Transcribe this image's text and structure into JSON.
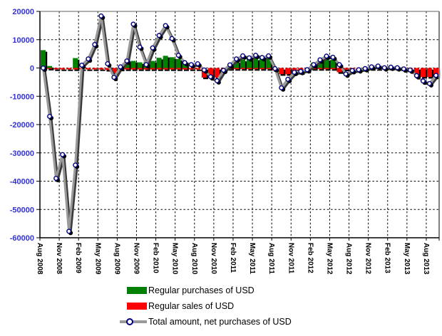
{
  "chart_data": {
    "type": "combo-bar-line",
    "title": "",
    "y_range": [
      -60000,
      20000
    ],
    "y_ticks": [
      20000,
      10000,
      0,
      -10000,
      -20000,
      -30000,
      -40000,
      -50000,
      -60000
    ],
    "y_tick_labels": [
      "20000",
      "10000",
      "0",
      "-10000",
      "-20000",
      "-30000",
      "-40000",
      "-50000",
      "-60000"
    ],
    "x_tick_labels": [
      "Aug 2008",
      "Nov 2008",
      "Feb 2009",
      "May 2009",
      "Aug 2009",
      "Nov 2009",
      "Feb 2010",
      "May 2010",
      "Aug 2010",
      "Nov 2010",
      "Feb 2011",
      "May 2011",
      "Aug 2011",
      "Nov 2011",
      "Feb 2012",
      "May 2012",
      "Aug 2012",
      "Nov 2012",
      "Feb 2013",
      "May 2013",
      "Aug 2013"
    ],
    "grid": "dashed",
    "legend_position": "bottom",
    "months": [
      "Aug 2008",
      "Sep 2008",
      "Oct 2008",
      "Nov 2008",
      "Dec 2008",
      "Jan 2009",
      "Feb 2009",
      "Mar 2009",
      "Apr 2009",
      "May 2009",
      "Jun 2009",
      "Jul 2009",
      "Aug 2009",
      "Sep 2009",
      "Oct 2009",
      "Nov 2009",
      "Dec 2009",
      "Jan 2010",
      "Feb 2010",
      "Mar 2010",
      "Apr 2010",
      "May 2010",
      "Jun 2010",
      "Jul 2010",
      "Aug 2010",
      "Sep 2010",
      "Oct 2010",
      "Nov 2010",
      "Dec 2010",
      "Jan 2011",
      "Feb 2011",
      "Mar 2011",
      "Apr 2011",
      "May 2011",
      "Jun 2011",
      "Jul 2011",
      "Aug 2011",
      "Sep 2011",
      "Oct 2011",
      "Nov 2011",
      "Dec 2011",
      "Jan 2012",
      "Feb 2012",
      "Mar 2012",
      "Apr 2012",
      "May 2012",
      "Jun 2012",
      "Jul 2012",
      "Aug 2012",
      "Sep 2012",
      "Oct 2012",
      "Nov 2012",
      "Dec 2012",
      "Jan 2013",
      "Feb 2013",
      "Mar 2013",
      "Apr 2013",
      "May 2013",
      "Jun 2013",
      "Jul 2013",
      "Aug 2013",
      "Sep 2013"
    ],
    "series": [
      {
        "name": "Regular purchases of USD",
        "type": "bar",
        "color": "#008000",
        "values": [
          6300,
          700,
          0,
          0,
          0,
          3500,
          0,
          0,
          0,
          0,
          0,
          0,
          0,
          2300,
          2500,
          2000,
          2100,
          2500,
          3600,
          4300,
          3800,
          3200,
          1500,
          0,
          0,
          0,
          0,
          0,
          0,
          1200,
          2400,
          2900,
          3100,
          3300,
          3400,
          3500,
          0,
          0,
          0,
          0,
          0,
          0,
          1900,
          2900,
          3200,
          2900,
          0,
          0,
          0,
          0,
          0,
          0,
          0,
          0,
          0,
          0,
          0,
          0,
          0,
          0,
          0,
          0
        ]
      },
      {
        "name": "Regular sales of USD",
        "type": "bar",
        "color": "#ff0000",
        "values": [
          -300,
          -300,
          -500,
          -500,
          -500,
          -500,
          -500,
          -500,
          -500,
          -500,
          -700,
          -1800,
          -600,
          -500,
          -500,
          -500,
          -500,
          -500,
          -500,
          -500,
          -500,
          -500,
          -500,
          -500,
          -500,
          -3400,
          -3400,
          -3400,
          -800,
          -400,
          -400,
          -400,
          -400,
          -400,
          -400,
          -400,
          -800,
          -2200,
          -2200,
          -1900,
          -1800,
          -1000,
          -400,
          -400,
          -400,
          -400,
          -1500,
          -600,
          -400,
          -400,
          -400,
          -400,
          -400,
          -300,
          -300,
          -400,
          -500,
          -500,
          -3100,
          -3200,
          -3200,
          -3100
        ]
      },
      {
        "name": "Total amount, net purchases of USD",
        "type": "line",
        "color": "#999999",
        "marker": "circle",
        "marker_stroke": "#000080",
        "values": [
          0,
          -17100,
          -39000,
          -30600,
          -57700,
          -34300,
          1000,
          3200,
          8300,
          18400,
          1500,
          -3300,
          400,
          2500,
          15500,
          7400,
          1200,
          7100,
          11500,
          15000,
          10400,
          4500,
          1900,
          1200,
          1500,
          -700,
          -3100,
          -4500,
          -800,
          1100,
          3200,
          4300,
          3600,
          4500,
          3700,
          4300,
          -200,
          -7000,
          -4000,
          -1500,
          -1200,
          -600,
          1200,
          2900,
          4200,
          3800,
          1200,
          -2100,
          -900,
          -600,
          -200,
          400,
          700,
          100,
          300,
          100,
          -300,
          -700,
          -2700,
          -4600,
          -5500,
          -2600
        ]
      }
    ],
    "colors": {
      "purchases": "#008000",
      "sales": "#ff0000",
      "net_line": "#999999",
      "marker_fill": "#ffffff",
      "marker_stroke": "#000080",
      "y_axis_label": "#3333cc",
      "x_axis_label": "#000000",
      "gridline": "#000000",
      "shadow": "#000000"
    }
  },
  "legend": {
    "items": [
      {
        "label": "Regular purchases of USD",
        "swatch": "green-rect"
      },
      {
        "label": "Regular sales of USD",
        "swatch": "red-rect"
      },
      {
        "label": "Total amount, net purchases of USD",
        "swatch": "gray-line-circle-marker"
      }
    ]
  }
}
